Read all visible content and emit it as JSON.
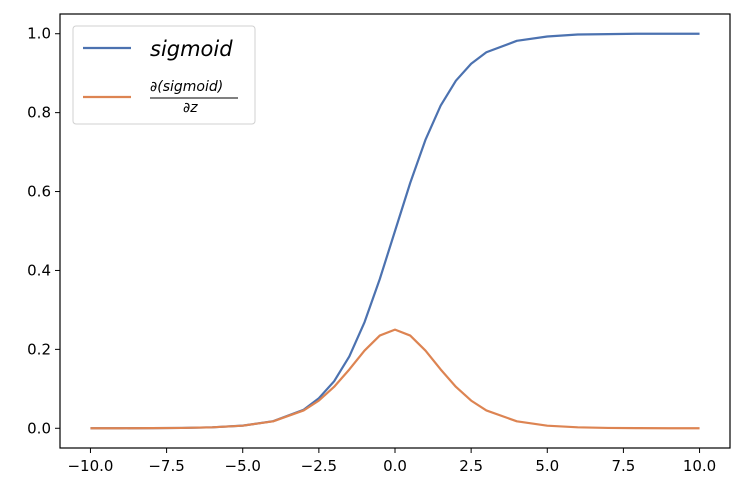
{
  "chart_data": {
    "type": "line",
    "xlim": [
      -11.0,
      11.0
    ],
    "ylim": [
      -0.05,
      1.05
    ],
    "xticks": [
      -10.0,
      -7.5,
      -5.0,
      -2.5,
      0.0,
      2.5,
      5.0,
      7.5,
      10.0
    ],
    "xtick_labels": [
      "−10.0",
      "−7.5",
      "−5.0",
      "−2.5",
      "0.0",
      "2.5",
      "5.0",
      "7.5",
      "10.0"
    ],
    "yticks": [
      0.0,
      0.2,
      0.4,
      0.6,
      0.8,
      1.0
    ],
    "ytick_labels": [
      "0.0",
      "0.2",
      "0.4",
      "0.6",
      "0.8",
      "1.0"
    ],
    "grid": false,
    "legend_position": "upper-left",
    "x": [
      -10,
      -9,
      -8,
      -7,
      -6,
      -5,
      -4,
      -3,
      -2.5,
      -2,
      -1.5,
      -1,
      -0.5,
      0,
      0.5,
      1,
      1.5,
      2,
      2.5,
      3,
      4,
      5,
      6,
      7,
      8,
      9,
      10
    ],
    "series": [
      {
        "name": "sigmoid",
        "color": "#4c72b0",
        "values": [
          5e-05,
          0.0001,
          0.0003,
          0.0009,
          0.0025,
          0.0067,
          0.018,
          0.047,
          0.076,
          0.119,
          0.182,
          0.269,
          0.378,
          0.5,
          0.622,
          0.731,
          0.818,
          0.881,
          0.924,
          0.953,
          0.982,
          0.993,
          0.998,
          0.999,
          1.0,
          1.0,
          1.0
        ]
      },
      {
        "name_numerator": "∂(sigmoid)",
        "name_denominator": "∂z",
        "color": "#dd8452",
        "values": [
          5e-05,
          0.0001,
          0.0003,
          0.0009,
          0.0025,
          0.0066,
          0.0177,
          0.0452,
          0.0701,
          0.105,
          0.149,
          0.197,
          0.235,
          0.25,
          0.235,
          0.197,
          0.149,
          0.105,
          0.0701,
          0.0452,
          0.0177,
          0.0066,
          0.0025,
          0.0009,
          0.0003,
          0.0001,
          5e-05
        ]
      }
    ]
  }
}
